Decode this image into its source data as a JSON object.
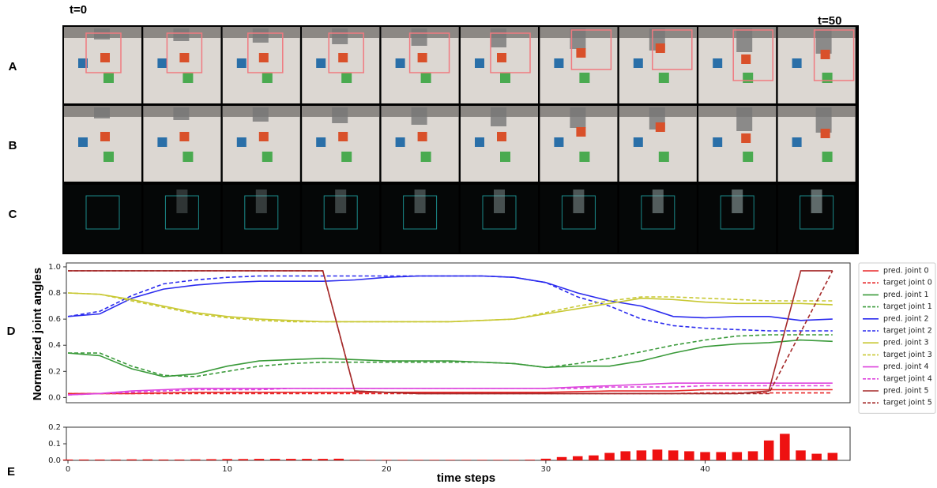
{
  "labels": {
    "start": "t=0",
    "end": "t=50",
    "rows": [
      "A",
      "B",
      "C",
      "D",
      "E"
    ]
  },
  "chart_data": [
    {
      "type": "line",
      "ylabel": "Normalized joint angles",
      "legend": "outside right",
      "x": [
        0,
        2,
        4,
        6,
        8,
        10,
        12,
        14,
        16,
        18,
        20,
        22,
        24,
        26,
        28,
        30,
        32,
        34,
        36,
        38,
        40,
        42,
        44,
        46,
        48
      ],
      "xlim": [
        -0.1,
        49.1
      ],
      "ylim": [
        -0.04,
        1.03
      ],
      "yticks": [
        {
          "value": 0,
          "label": "0.0"
        },
        {
          "value": 0.2,
          "label": "0.2"
        },
        {
          "value": 0.4,
          "label": "0.4"
        },
        {
          "value": 0.6,
          "label": "0.6"
        },
        {
          "value": 0.8,
          "label": "0.8"
        },
        {
          "value": 1,
          "label": "1.0"
        }
      ],
      "series": [
        {
          "name": "pred. joint 0",
          "color": "#e8282a",
          "dashed": false,
          "values": [
            0.03,
            0.03,
            0.03,
            0.035,
            0.04,
            0.04,
            0.04,
            0.04,
            0.04,
            0.04,
            0.04,
            0.04,
            0.04,
            0.04,
            0.04,
            0.04,
            0.045,
            0.05,
            0.05,
            0.05,
            0.06,
            0.06,
            0.06,
            0.06,
            0.06
          ]
        },
        {
          "name": "target joint 0",
          "color": "#e8282a",
          "dashed": true,
          "values": [
            0.03,
            0.03,
            0.03,
            0.03,
            0.03,
            0.03,
            0.03,
            0.03,
            0.03,
            0.03,
            0.03,
            0.03,
            0.03,
            0.03,
            0.03,
            0.03,
            0.03,
            0.03,
            0.03,
            0.03,
            0.035,
            0.035,
            0.035,
            0.035,
            0.035
          ]
        },
        {
          "name": "pred. joint 1",
          "color": "#3a9a3a",
          "dashed": false,
          "values": [
            0.34,
            0.32,
            0.22,
            0.16,
            0.18,
            0.24,
            0.28,
            0.29,
            0.3,
            0.29,
            0.28,
            0.28,
            0.28,
            0.27,
            0.26,
            0.23,
            0.24,
            0.24,
            0.28,
            0.34,
            0.39,
            0.41,
            0.42,
            0.44,
            0.43
          ]
        },
        {
          "name": "target joint 1",
          "color": "#3a9a3a",
          "dashed": true,
          "values": [
            0.34,
            0.34,
            0.24,
            0.17,
            0.16,
            0.2,
            0.24,
            0.26,
            0.27,
            0.27,
            0.27,
            0.27,
            0.27,
            0.27,
            0.26,
            0.23,
            0.26,
            0.3,
            0.35,
            0.4,
            0.44,
            0.47,
            0.48,
            0.48,
            0.48
          ]
        },
        {
          "name": "pred. joint 2",
          "color": "#2b2bee",
          "dashed": false,
          "values": [
            0.62,
            0.64,
            0.76,
            0.83,
            0.86,
            0.88,
            0.89,
            0.89,
            0.89,
            0.9,
            0.92,
            0.93,
            0.93,
            0.93,
            0.92,
            0.88,
            0.8,
            0.74,
            0.7,
            0.62,
            0.61,
            0.62,
            0.62,
            0.59,
            0.6
          ]
        },
        {
          "name": "target joint 2",
          "color": "#2b2bee",
          "dashed": true,
          "values": [
            0.62,
            0.66,
            0.78,
            0.87,
            0.9,
            0.92,
            0.93,
            0.93,
            0.93,
            0.93,
            0.93,
            0.93,
            0.93,
            0.93,
            0.92,
            0.88,
            0.77,
            0.7,
            0.6,
            0.55,
            0.53,
            0.52,
            0.51,
            0.51,
            0.51
          ]
        },
        {
          "name": "pred. joint 3",
          "color": "#c8c832",
          "dashed": false,
          "values": [
            0.8,
            0.79,
            0.75,
            0.7,
            0.65,
            0.62,
            0.6,
            0.59,
            0.58,
            0.58,
            0.58,
            0.58,
            0.58,
            0.59,
            0.6,
            0.64,
            0.68,
            0.72,
            0.76,
            0.75,
            0.73,
            0.72,
            0.72,
            0.72,
            0.71
          ]
        },
        {
          "name": "target joint 3",
          "color": "#c8c832",
          "dashed": true,
          "values": [
            0.8,
            0.79,
            0.74,
            0.69,
            0.64,
            0.61,
            0.59,
            0.58,
            0.58,
            0.58,
            0.58,
            0.58,
            0.58,
            0.59,
            0.6,
            0.65,
            0.7,
            0.74,
            0.77,
            0.77,
            0.76,
            0.75,
            0.74,
            0.74,
            0.74
          ]
        },
        {
          "name": "pred. joint 4",
          "color": "#dd44dd",
          "dashed": false,
          "values": [
            0.02,
            0.03,
            0.05,
            0.06,
            0.07,
            0.07,
            0.07,
            0.07,
            0.07,
            0.07,
            0.07,
            0.07,
            0.07,
            0.07,
            0.07,
            0.07,
            0.08,
            0.09,
            0.1,
            0.11,
            0.11,
            0.11,
            0.11,
            0.11,
            0.11
          ]
        },
        {
          "name": "target joint 4",
          "color": "#dd44dd",
          "dashed": true,
          "values": [
            0.02,
            0.03,
            0.04,
            0.05,
            0.06,
            0.06,
            0.06,
            0.07,
            0.07,
            0.07,
            0.07,
            0.07,
            0.07,
            0.07,
            0.07,
            0.07,
            0.07,
            0.08,
            0.08,
            0.08,
            0.09,
            0.09,
            0.09,
            0.09,
            0.09
          ]
        },
        {
          "name": "pred. joint 5",
          "color": "#a52a2a",
          "dashed": false,
          "values": [
            0.97,
            0.97,
            0.97,
            0.97,
            0.97,
            0.97,
            0.97,
            0.97,
            0.97,
            0.05,
            0.04,
            0.03,
            0.03,
            0.03,
            0.03,
            0.03,
            0.03,
            0.03,
            0.03,
            0.03,
            0.03,
            0.03,
            0.05,
            0.97,
            0.97
          ]
        },
        {
          "name": "target joint 5",
          "color": "#a52a2a",
          "dashed": true,
          "values": [
            0.97,
            0.97,
            0.97,
            0.97,
            0.97,
            0.97,
            0.97,
            0.97,
            0.97,
            0.05,
            0.04,
            0.03,
            0.03,
            0.03,
            0.03,
            0.03,
            0.03,
            0.03,
            0.03,
            0.03,
            0.03,
            0.03,
            0.03,
            0.5,
            0.97
          ]
        }
      ]
    },
    {
      "type": "bar",
      "xlabel": "time steps",
      "color": "#ee1111",
      "x": [
        0,
        1,
        2,
        3,
        4,
        5,
        6,
        7,
        8,
        9,
        10,
        11,
        12,
        13,
        14,
        15,
        16,
        17,
        18,
        19,
        20,
        21,
        22,
        23,
        24,
        25,
        26,
        27,
        28,
        29,
        30,
        31,
        32,
        33,
        34,
        35,
        36,
        37,
        38,
        39,
        40,
        41,
        42,
        43,
        44,
        45,
        46,
        47,
        48
      ],
      "values": [
        0.005,
        0.005,
        0.005,
        0.005,
        0.006,
        0.006,
        0.005,
        0.005,
        0.006,
        0.007,
        0.008,
        0.008,
        0.009,
        0.009,
        0.009,
        0.009,
        0.009,
        0.01,
        0.004,
        0.003,
        0.003,
        0.003,
        0.003,
        0.003,
        0.003,
        0.003,
        0.003,
        0.003,
        0.003,
        0.004,
        0.01,
        0.02,
        0.025,
        0.03,
        0.045,
        0.055,
        0.06,
        0.065,
        0.06,
        0.055,
        0.05,
        0.05,
        0.05,
        0.055,
        0.12,
        0.16,
        0.06,
        0.04,
        0.045
      ],
      "xlim": [
        -0.1,
        49.1
      ],
      "ylim": [
        0,
        0.2
      ],
      "xticks": [
        0,
        10,
        20,
        30,
        40
      ],
      "yticks": [
        {
          "value": 0,
          "label": "0.0"
        },
        {
          "value": 0.1,
          "label": "0.1"
        },
        {
          "value": 0.2,
          "label": "0.2"
        }
      ]
    }
  ]
}
